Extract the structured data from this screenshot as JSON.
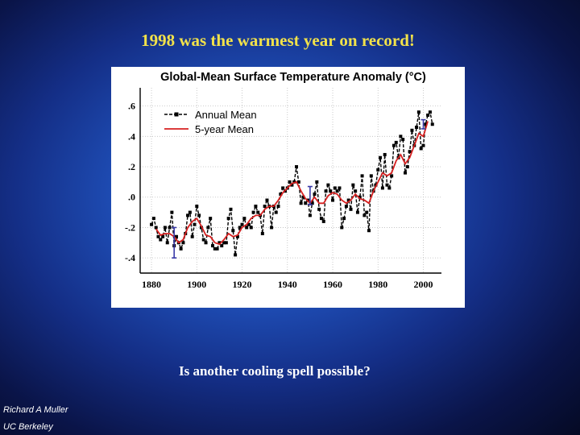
{
  "slide": {
    "title": "1998 was the warmest year on record!",
    "question": "Is another cooling spell possible?",
    "author": "Richard A Muller",
    "affiliation": "UC Berkeley"
  },
  "colors": {
    "title": "#f2e24a",
    "annual_mean": "#000000",
    "five_year_mean": "#d62020",
    "error_bar": "#3a3aa8"
  },
  "chart_data": {
    "type": "line",
    "title": "Global-Mean Surface Temperature Anomaly (°C)",
    "xlabel": "",
    "ylabel": "",
    "xlim": [
      1875,
      2008
    ],
    "ylim": [
      -0.5,
      0.72
    ],
    "x_ticks": [
      1880,
      1900,
      1920,
      1940,
      1960,
      1980,
      2000
    ],
    "y_ticks": [
      0.6,
      0.4,
      0.2,
      0.0,
      -0.2,
      -0.4
    ],
    "y_tick_labels": [
      ".6",
      ".4",
      ".2",
      ".0",
      "-.2",
      "-.4"
    ],
    "x_tick_labels": [
      "1880",
      "1900",
      "1920",
      "1940",
      "1960",
      "1980",
      "2000"
    ],
    "grid": true,
    "legend": "top-left",
    "series": [
      {
        "name": "Annual Mean",
        "style": "dashed-markers",
        "x": [
          1880,
          1881,
          1882,
          1883,
          1884,
          1885,
          1886,
          1887,
          1888,
          1889,
          1890,
          1891,
          1892,
          1893,
          1894,
          1895,
          1896,
          1897,
          1898,
          1899,
          1900,
          1901,
          1902,
          1903,
          1904,
          1905,
          1906,
          1907,
          1908,
          1909,
          1910,
          1911,
          1912,
          1913,
          1914,
          1915,
          1916,
          1917,
          1918,
          1919,
          1920,
          1921,
          1922,
          1923,
          1924,
          1925,
          1926,
          1927,
          1928,
          1929,
          1930,
          1931,
          1932,
          1933,
          1934,
          1935,
          1936,
          1937,
          1938,
          1939,
          1940,
          1941,
          1942,
          1943,
          1944,
          1945,
          1946,
          1947,
          1948,
          1949,
          1950,
          1951,
          1952,
          1953,
          1954,
          1955,
          1956,
          1957,
          1958,
          1959,
          1960,
          1961,
          1962,
          1963,
          1964,
          1965,
          1966,
          1967,
          1968,
          1969,
          1970,
          1971,
          1972,
          1973,
          1974,
          1975,
          1976,
          1977,
          1978,
          1979,
          1980,
          1981,
          1982,
          1983,
          1984,
          1985,
          1986,
          1987,
          1988,
          1989,
          1990,
          1991,
          1992,
          1993,
          1994,
          1995,
          1996,
          1997,
          1998,
          1999,
          2000,
          2001,
          2002,
          2003,
          2004
        ],
        "values": [
          -0.18,
          -0.14,
          -0.2,
          -0.26,
          -0.28,
          -0.26,
          -0.2,
          -0.3,
          -0.2,
          -0.1,
          -0.32,
          -0.26,
          -0.3,
          -0.34,
          -0.3,
          -0.24,
          -0.12,
          -0.1,
          -0.26,
          -0.18,
          -0.06,
          -0.12,
          -0.2,
          -0.28,
          -0.3,
          -0.2,
          -0.14,
          -0.32,
          -0.34,
          -0.34,
          -0.3,
          -0.32,
          -0.3,
          -0.3,
          -0.14,
          -0.08,
          -0.22,
          -0.38,
          -0.26,
          -0.2,
          -0.18,
          -0.14,
          -0.2,
          -0.18,
          -0.2,
          -0.1,
          -0.06,
          -0.1,
          -0.12,
          -0.24,
          -0.06,
          -0.02,
          -0.06,
          -0.2,
          -0.06,
          -0.1,
          -0.06,
          0.02,
          0.06,
          0.04,
          0.06,
          0.1,
          0.08,
          0.1,
          0.2,
          0.1,
          -0.04,
          0.0,
          -0.04,
          -0.02,
          -0.12,
          -0.04,
          0.02,
          0.1,
          -0.08,
          -0.14,
          -0.16,
          0.04,
          0.08,
          0.04,
          -0.02,
          0.06,
          0.04,
          0.06,
          -0.2,
          -0.14,
          -0.06,
          -0.02,
          -0.08,
          0.08,
          0.04,
          -0.1,
          0.0,
          0.14,
          -0.12,
          -0.1,
          -0.22,
          0.14,
          0.04,
          0.08,
          0.18,
          0.26,
          0.06,
          0.28,
          0.08,
          0.06,
          0.14,
          0.34,
          0.36,
          0.26,
          0.4,
          0.38,
          0.16,
          0.2,
          0.3,
          0.44,
          0.34,
          0.46,
          0.56,
          0.32,
          0.34,
          0.48,
          0.54,
          0.56,
          0.48
        ]
      },
      {
        "name": "5-year Mean",
        "style": "solid",
        "x": [
          1882,
          1884,
          1886,
          1888,
          1890,
          1892,
          1894,
          1896,
          1898,
          1900,
          1902,
          1904,
          1906,
          1908,
          1910,
          1912,
          1914,
          1916,
          1918,
          1920,
          1922,
          1924,
          1926,
          1928,
          1930,
          1932,
          1934,
          1936,
          1938,
          1940,
          1942,
          1944,
          1946,
          1948,
          1950,
          1952,
          1954,
          1956,
          1958,
          1960,
          1962,
          1964,
          1966,
          1968,
          1970,
          1972,
          1974,
          1976,
          1978,
          1980,
          1982,
          1984,
          1986,
          1988,
          1990,
          1992,
          1994,
          1996,
          1998,
          2000,
          2002
        ],
        "values": [
          -0.21,
          -0.25,
          -0.24,
          -0.24,
          -0.26,
          -0.3,
          -0.28,
          -0.2,
          -0.16,
          -0.14,
          -0.19,
          -0.25,
          -0.26,
          -0.3,
          -0.31,
          -0.28,
          -0.24,
          -0.26,
          -0.25,
          -0.2,
          -0.18,
          -0.14,
          -0.12,
          -0.12,
          -0.08,
          -0.06,
          -0.06,
          -0.02,
          0.03,
          0.06,
          0.09,
          0.1,
          0.04,
          -0.01,
          -0.04,
          0.0,
          -0.04,
          -0.04,
          0.01,
          0.03,
          0.02,
          -0.02,
          -0.04,
          -0.02,
          0.02,
          -0.01,
          -0.02,
          -0.04,
          0.04,
          0.1,
          0.16,
          0.14,
          0.16,
          0.24,
          0.28,
          0.22,
          0.26,
          0.34,
          0.42,
          0.4,
          0.5
        ]
      }
    ],
    "error_bars": [
      {
        "x": 1890,
        "low": -0.4,
        "high": -0.2
      },
      {
        "x": 1950,
        "low": -0.05,
        "high": 0.07
      },
      {
        "x": 2000,
        "low": 0.45,
        "high": 0.51
      }
    ]
  }
}
